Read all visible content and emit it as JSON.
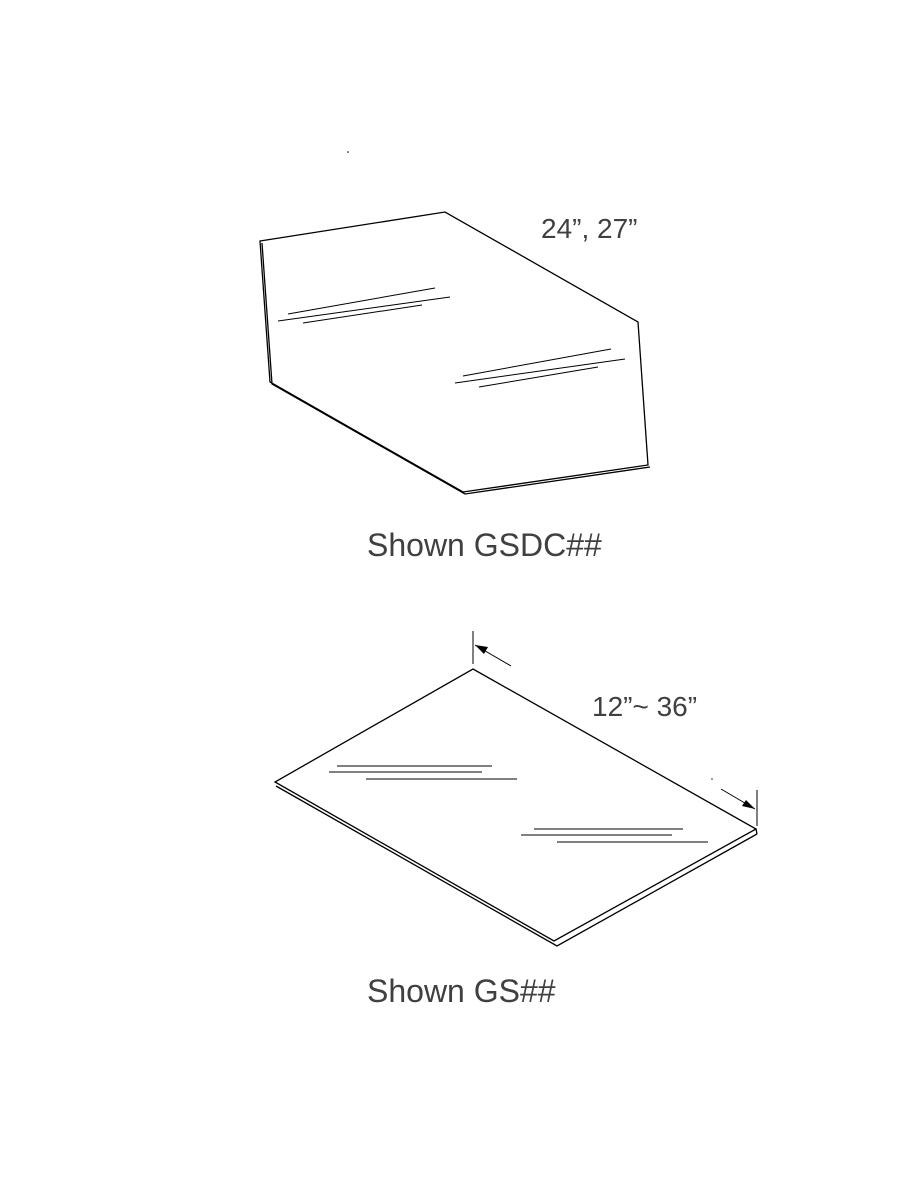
{
  "figures": [
    {
      "shape": "hexagonal glass shelf",
      "dimension_label": "24”, 27”",
      "caption": "Shown GSDC##"
    },
    {
      "shape": "rectangular glass shelf",
      "dimension_label": "12”~ 36”",
      "caption": "Shown GS##"
    }
  ]
}
